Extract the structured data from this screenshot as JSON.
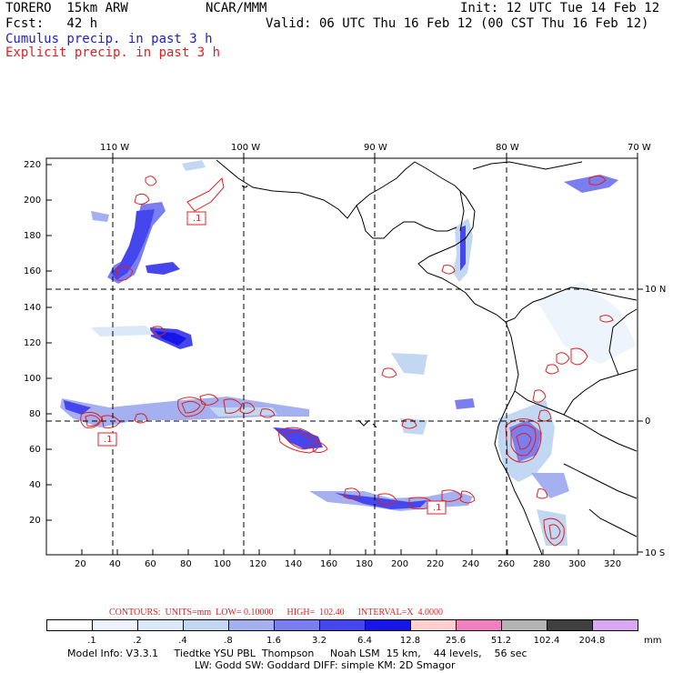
{
  "header": {
    "model": "TORERO  15km ARW",
    "org": "NCAR/MMM",
    "init": "Init: 12 UTC Tue 14 Feb 12",
    "fcst": "Fcst:   42 h",
    "valid": "Valid: 06 UTC Thu 16 Feb 12 (00 CST Thu 16 Feb 12)",
    "cumulus_label": "Cumulus precip. in past 3 h",
    "explicit_label": "Explicit precip. in past 3 h"
  },
  "axes": {
    "lon_labels": [
      "110 W",
      "100 W",
      "90 W",
      "80 W",
      "70 W"
    ],
    "lat_labels": [
      "10 N",
      "0",
      "10 S"
    ],
    "y_ticks": [
      "220",
      "200",
      "180",
      "160",
      "140",
      "120",
      "100",
      "80",
      "60",
      "40",
      "20"
    ],
    "x_ticks": [
      "20",
      "40",
      "60",
      "80",
      "100",
      "120",
      "140",
      "160",
      "180",
      "200",
      "220",
      "240",
      "260",
      "280",
      "300",
      "320"
    ]
  },
  "contours": {
    "text": "CONTOURS:  UNITS=mm  LOW= 0.10000      HIGH=  102.40      INTERVAL=X  4.0000"
  },
  "colorbar": {
    "labels": [
      ".1",
      ".2",
      ".4",
      ".8",
      "1.6",
      "3.2",
      "6.4",
      "12.8",
      "25.6",
      "51.2",
      "102.4",
      "204.8"
    ],
    "units": "mm",
    "colors": [
      "#ffffff",
      "#eef4fb",
      "#dbe8f7",
      "#c2d7f2",
      "#a4b0f0",
      "#7a7ef0",
      "#4646ee",
      "#1616e8",
      "#ffd0d0",
      "#f080c0",
      "#b4b4b4",
      "#404040",
      "#d8a8f0"
    ]
  },
  "model_info": {
    "line1": "Model Info: V3.3.1     Tiedtke YSU PBL  Thompson     Noah LSM  15 km,    44 levels,    56 sec",
    "line2": "LW: Godd SW: Goddard DIFF: simple KM: 2D Smagor"
  },
  "map_labels": {
    "box1": ".1",
    "box2": ".1",
    "box3": ".1"
  }
}
